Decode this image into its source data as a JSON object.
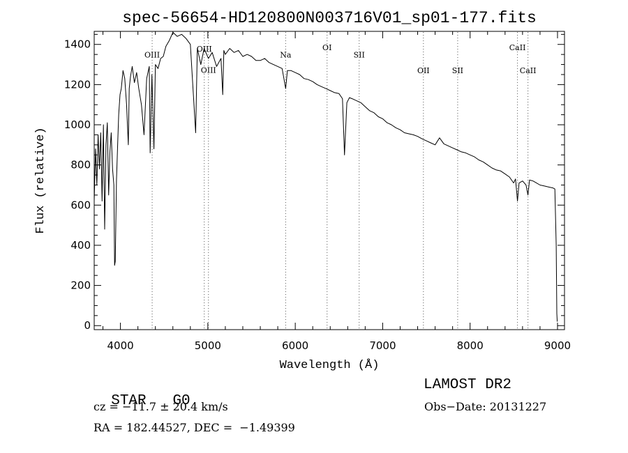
{
  "chart_data": {
    "type": "line",
    "title": "spec-56654-HD120800N003716V01_sp01-177.fits",
    "xlabel": "Wavelength (Å)",
    "ylabel": "Flux (relative)",
    "xlim": [
      3700,
      9080
    ],
    "ylim": [
      -20,
      1465
    ],
    "x_ticks": [
      4000,
      5000,
      6000,
      7000,
      8000,
      9000
    ],
    "y_ticks": [
      0,
      200,
      400,
      600,
      800,
      1000,
      1200,
      1400
    ],
    "grid": false,
    "series": [
      {
        "x": [
          3700,
          3715,
          3730,
          3745,
          3760,
          3775,
          3790,
          3805,
          3820,
          3835,
          3850,
          3865,
          3880,
          3895,
          3910,
          3925,
          3933,
          3941,
          3955,
          3968,
          3980,
          3995,
          4010,
          4030,
          4050,
          4070,
          4090,
          4101,
          4115,
          4135,
          4160,
          4185,
          4210,
          4240,
          4270,
          4300,
          4330,
          4340,
          4360,
          4383,
          4400,
          4430,
          4460,
          4490,
          4520,
          4560,
          4600,
          4650,
          4700,
          4750,
          4800,
          4861,
          4880,
          4920,
          4957,
          5007,
          5050,
          5100,
          5150,
          5170,
          5183,
          5200,
          5250,
          5300,
          5350,
          5400,
          5450,
          5500,
          5550,
          5600,
          5650,
          5700,
          5750,
          5800,
          5850,
          5890,
          5910,
          5950,
          6000,
          6050,
          6100,
          6150,
          6200,
          6250,
          6300,
          6350,
          6400,
          6450,
          6500,
          6540,
          6563,
          6590,
          6620,
          6650,
          6700,
          6750,
          6800,
          6850,
          6900,
          6950,
          7000,
          7050,
          7100,
          7150,
          7200,
          7250,
          7300,
          7350,
          7400,
          7450,
          7500,
          7550,
          7600,
          7650,
          7700,
          7750,
          7800,
          7850,
          7900,
          7950,
          8000,
          8050,
          8100,
          8150,
          8200,
          8250,
          8300,
          8350,
          8400,
          8450,
          8498,
          8520,
          8542,
          8560,
          8600,
          8640,
          8662,
          8680,
          8720,
          8760,
          8800,
          8850,
          8900,
          8950,
          8970,
          8985,
          8992,
          8997
        ],
        "y": [
          620,
          880,
          700,
          950,
          780,
          960,
          620,
          1000,
          480,
          900,
          1010,
          650,
          870,
          960,
          780,
          700,
          300,
          320,
          720,
          900,
          1050,
          1150,
          1180,
          1270,
          1230,
          1100,
          900,
          1180,
          1240,
          1290,
          1210,
          1260,
          1180,
          1100,
          950,
          1230,
          1290,
          860,
          1250,
          880,
          1300,
          1280,
          1330,
          1340,
          1390,
          1420,
          1460,
          1440,
          1450,
          1430,
          1400,
          960,
          1380,
          1300,
          1380,
          1330,
          1360,
          1290,
          1330,
          1150,
          1370,
          1350,
          1380,
          1360,
          1370,
          1340,
          1350,
          1340,
          1320,
          1320,
          1330,
          1310,
          1300,
          1290,
          1280,
          1180,
          1270,
          1270,
          1260,
          1250,
          1230,
          1225,
          1215,
          1200,
          1190,
          1180,
          1170,
          1160,
          1155,
          1130,
          850,
          1110,
          1135,
          1130,
          1120,
          1110,
          1090,
          1070,
          1060,
          1040,
          1030,
          1010,
          1000,
          985,
          975,
          960,
          955,
          950,
          942,
          930,
          920,
          910,
          900,
          935,
          905,
          895,
          885,
          875,
          865,
          860,
          850,
          840,
          825,
          815,
          800,
          785,
          775,
          770,
          755,
          740,
          710,
          730,
          620,
          710,
          720,
          700,
          650,
          725,
          720,
          710,
          700,
          695,
          690,
          685,
          680,
          400,
          60,
          20
        ]
      }
    ],
    "annotations": [
      {
        "label": "OIII",
        "x": 4363,
        "label_y": 1335
      },
      {
        "label": "OIII",
        "x": 4959,
        "label_y": 1365
      },
      {
        "label": "OIII",
        "x": 5007,
        "label_y": 1258
      },
      {
        "label": "Na",
        "x": 5890,
        "label_y": 1335
      },
      {
        "label": "OI",
        "x": 6364,
        "label_y": 1372
      },
      {
        "label": "SII",
        "x": 6731,
        "label_y": 1335
      },
      {
        "label": "OII",
        "x": 7466,
        "label_y": 1257
      },
      {
        "label": "SII",
        "x": 7858,
        "label_y": 1257
      },
      {
        "label": "CaII",
        "x": 8542,
        "label_y": 1372
      },
      {
        "label": "CaII",
        "x": 8662,
        "label_y": 1257
      }
    ]
  },
  "info": {
    "object_type": "STAR",
    "subclass": "G0",
    "survey": "LAMOST DR2",
    "redshift": "cz = −11.7 ± 20.4 km/s",
    "obs_date": "Obs−Date: 20131227",
    "coords": "RA = 182.44527, DEC =  −1.49399"
  }
}
